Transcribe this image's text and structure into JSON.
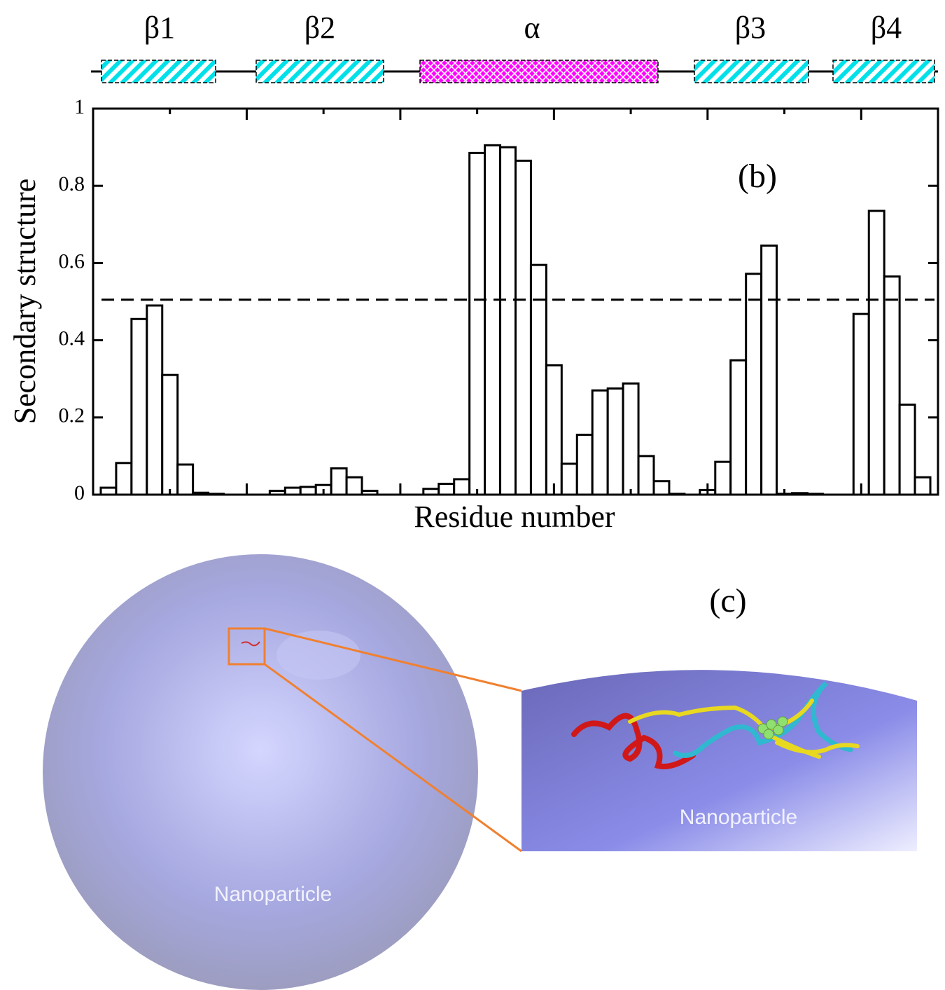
{
  "chart_data": {
    "type": "bar",
    "annotation": "(b)",
    "xlabel": "Residue number",
    "ylabel": "Secondary structure",
    "structure_elements": [
      "β1",
      "β2",
      "α",
      "β3",
      "β4"
    ],
    "categories": [
      null,
      null,
      null,
      null,
      null,
      null,
      null,
      null,
      null,
      null,
      null,
      null,
      null,
      null,
      null,
      null,
      null,
      null,
      null,
      null,
      null,
      null,
      null,
      null,
      null,
      null,
      null,
      null,
      null,
      null,
      null,
      null,
      null,
      null,
      null,
      null,
      null,
      null,
      null,
      null,
      null,
      null,
      null,
      null,
      null,
      null,
      null,
      null,
      null,
      null,
      null,
      null,
      null,
      null,
      null
    ],
    "values": [
      0.018,
      0.082,
      0.455,
      0.49,
      0.31,
      0.078,
      0.005,
      0.002,
      null,
      null,
      null,
      0.01,
      0.018,
      0.02,
      0.025,
      0.068,
      0.045,
      0.01,
      null,
      null,
      null,
      0.015,
      0.028,
      0.04,
      0.885,
      0.905,
      0.9,
      0.865,
      0.595,
      0.335,
      0.08,
      0.155,
      0.27,
      0.275,
      0.288,
      0.1,
      0.035,
      0.002,
      null,
      0.012,
      0.085,
      0.348,
      0.572,
      0.645,
      0.002,
      0.004,
      0.002,
      null,
      null,
      0.468,
      0.735,
      0.565,
      0.233,
      0.045,
      null
    ],
    "color": "#ffffff",
    "ylim": [
      0,
      1
    ],
    "yticks": [
      0,
      0.2,
      0.4,
      0.6,
      0.8,
      1
    ],
    "reference_line": 0.505
  },
  "panel_c": {
    "label": "(c)",
    "sphere_label": "Nanoparticle",
    "zoom_label": "Nanoparticle"
  }
}
